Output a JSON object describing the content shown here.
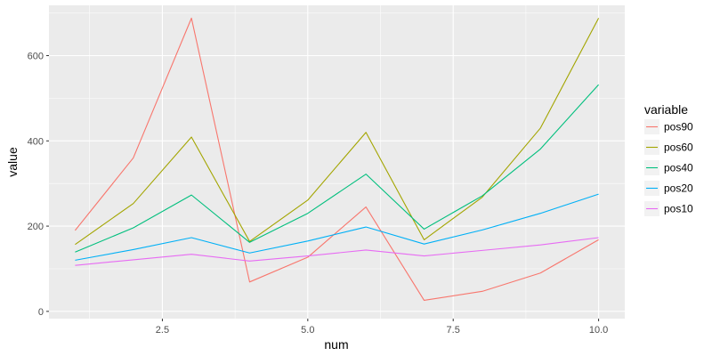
{
  "chart_data": {
    "type": "line",
    "xlabel": "num",
    "ylabel": "value",
    "xlim": [
      0.55,
      10.45
    ],
    "ylim": [
      -17,
      718
    ],
    "x_ticks": [
      2.5,
      5.0,
      7.5,
      10.0
    ],
    "x_tick_labels": [
      "2.5",
      "5.0",
      "7.5",
      "10.0"
    ],
    "x_minor_ticks": [
      1.25,
      3.75,
      6.25,
      8.75
    ],
    "y_ticks": [
      0,
      200,
      400,
      600
    ],
    "y_tick_labels": [
      "0",
      "200",
      "400",
      "600"
    ],
    "y_minor_ticks": [
      100,
      300,
      500,
      700
    ],
    "grid": true,
    "legend": {
      "title": "variable",
      "placement": "right"
    },
    "x": [
      1,
      2,
      3,
      4,
      5,
      6,
      7,
      8,
      9,
      10
    ],
    "series": [
      {
        "name": "pos90",
        "color": "#F8766D",
        "values": [
          190,
          360,
          688,
          69,
          127,
          245,
          26,
          47,
          90,
          168
        ]
      },
      {
        "name": "pos60",
        "color": "#A3A500",
        "values": [
          157,
          253,
          409,
          164,
          261,
          420,
          168,
          268,
          430,
          688
        ]
      },
      {
        "name": "pos40",
        "color": "#00BF7D",
        "values": [
          139,
          196,
          273,
          162,
          230,
          322,
          193,
          271,
          381,
          532
        ]
      },
      {
        "name": "pos20",
        "color": "#00B0F6",
        "values": [
          120,
          145,
          173,
          137,
          165,
          198,
          158,
          191,
          230,
          275
        ]
      },
      {
        "name": "pos10",
        "color": "#E76BF3",
        "values": [
          108,
          121,
          134,
          118,
          130,
          144,
          130,
          143,
          156,
          173
        ]
      }
    ]
  }
}
